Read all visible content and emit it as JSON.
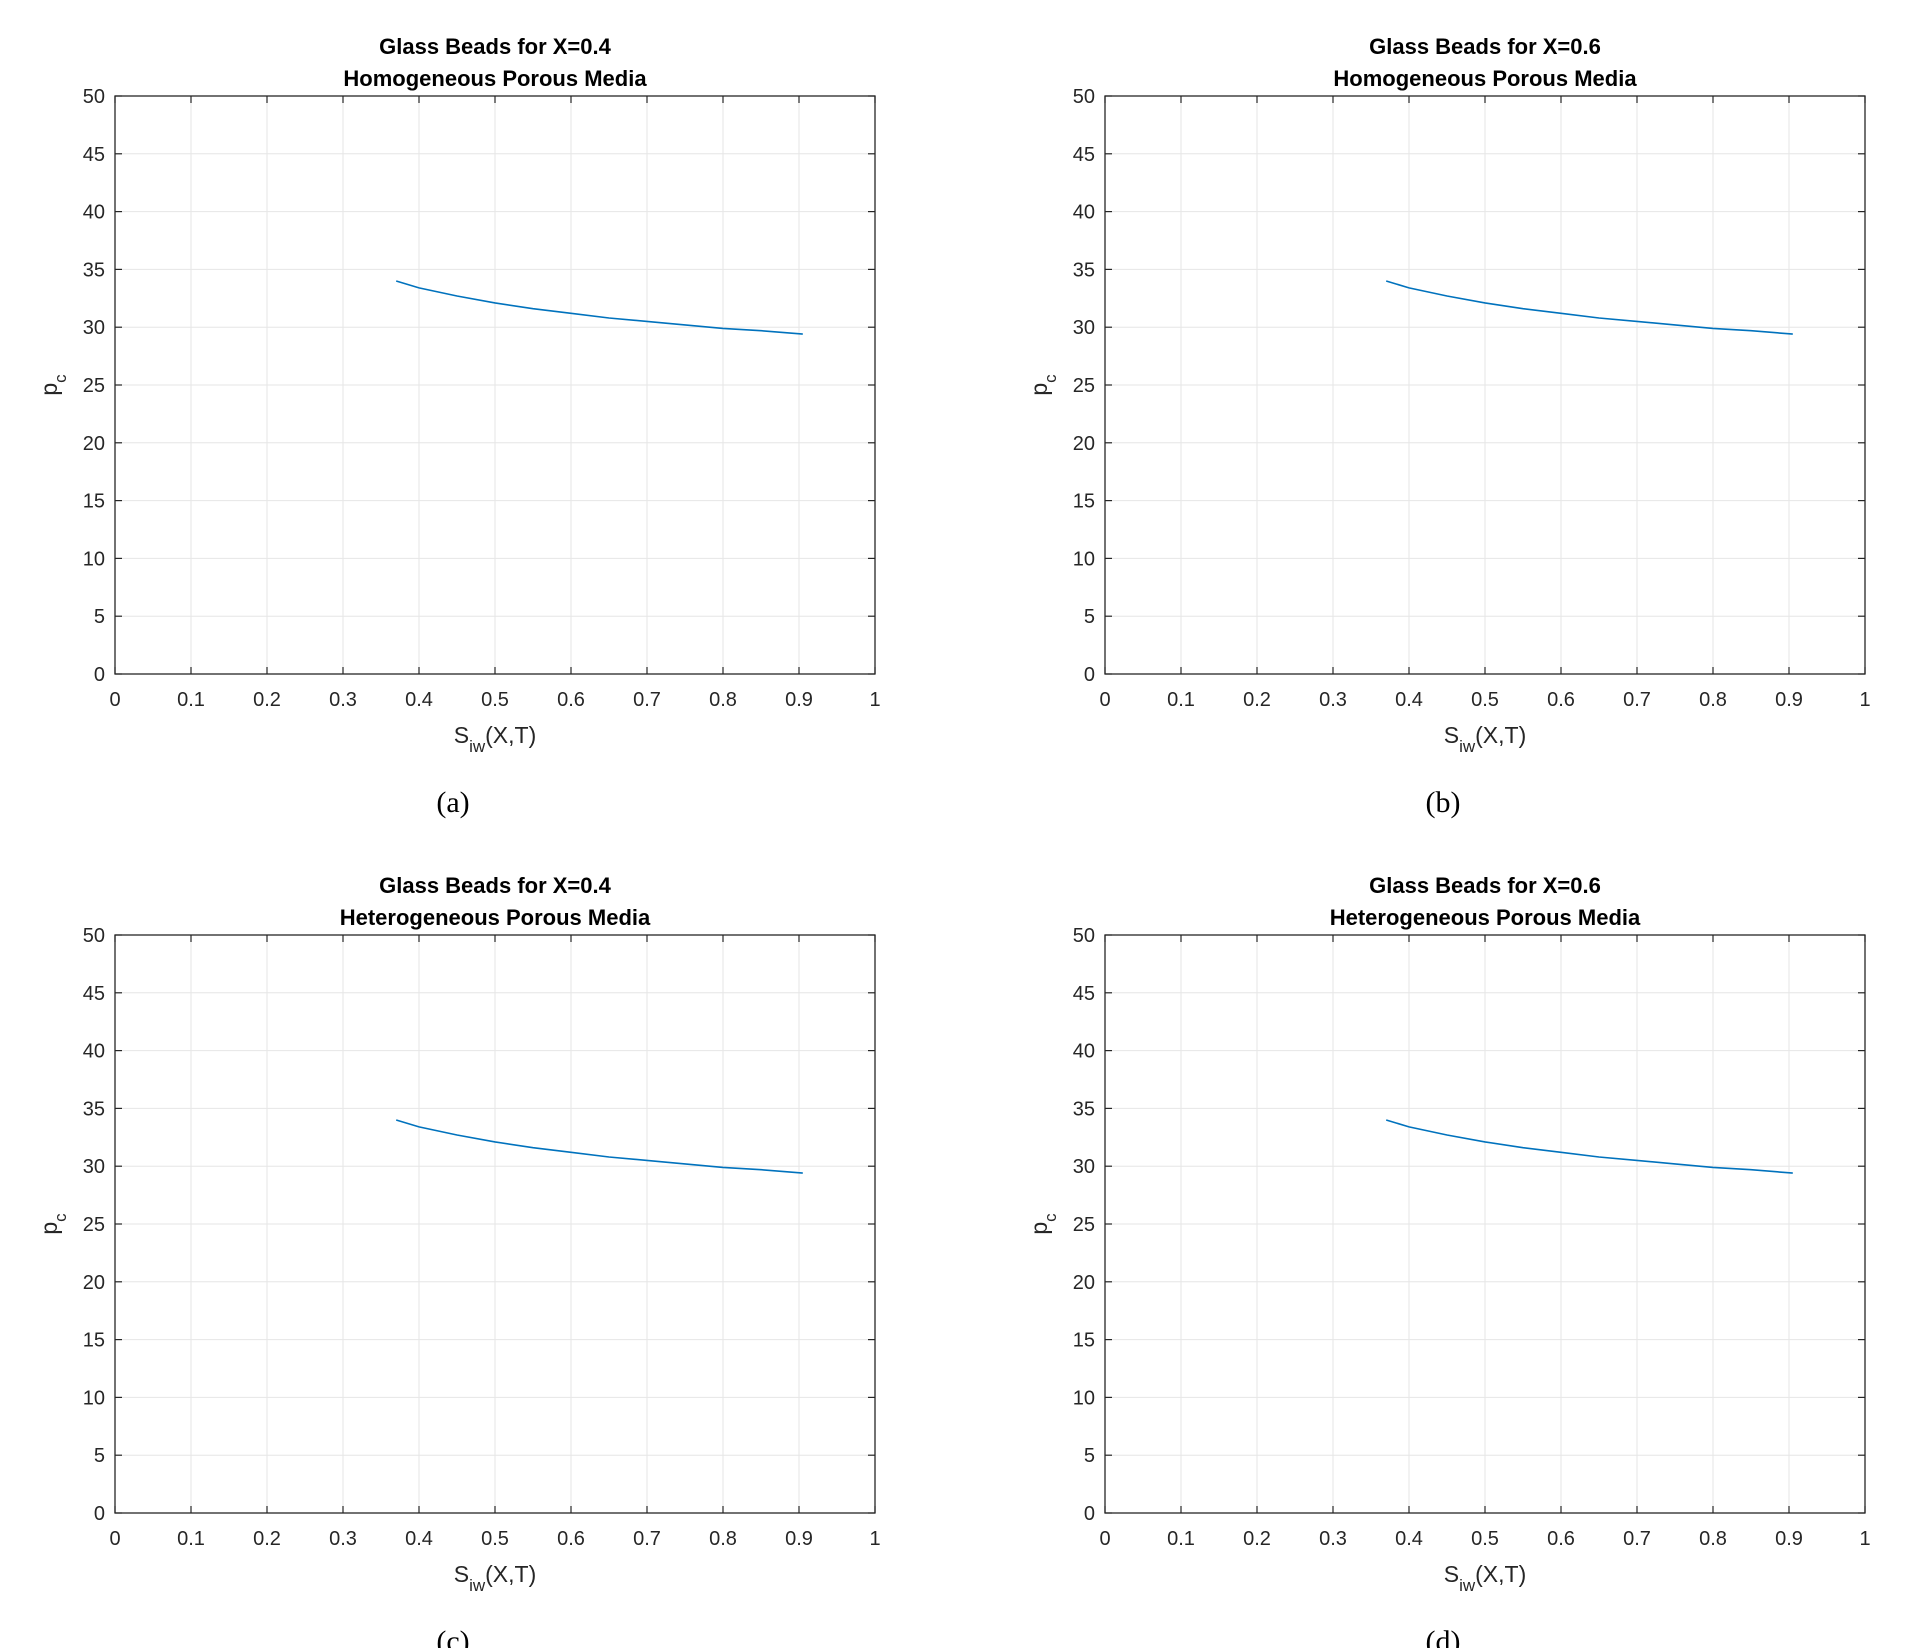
{
  "chart_data": [
    {
      "type": "line",
      "title": [
        "Glass Beads for X=0.4",
        "Homogeneous Porous Media"
      ],
      "caption": "(a)",
      "xlabel": {
        "main": "S",
        "sub": "iw",
        "suffix": "(X,T)"
      },
      "ylabel": {
        "main": "p",
        "sub": "c"
      },
      "xlim": [
        0,
        1
      ],
      "ylim": [
        0,
        50
      ],
      "xticks": [
        "0",
        "0.1",
        "0.2",
        "0.3",
        "0.4",
        "0.5",
        "0.6",
        "0.7",
        "0.8",
        "0.9",
        "1"
      ],
      "yticks": [
        "0",
        "5",
        "10",
        "15",
        "20",
        "25",
        "30",
        "35",
        "40",
        "45",
        "50"
      ],
      "grid": true,
      "series": [
        {
          "color": "#0072bd",
          "x": [
            0.37,
            0.4,
            0.45,
            0.5,
            0.55,
            0.6,
            0.65,
            0.7,
            0.75,
            0.8,
            0.85,
            0.905
          ],
          "y": [
            34.0,
            33.4,
            32.7,
            32.1,
            31.6,
            31.2,
            30.8,
            30.5,
            30.2,
            29.9,
            29.7,
            29.4
          ]
        }
      ]
    },
    {
      "type": "line",
      "title": [
        "Glass Beads for X=0.6",
        "Homogeneous Porous Media"
      ],
      "caption": "(b)",
      "xlabel": {
        "main": "S",
        "sub": "iw",
        "suffix": "(X,T)"
      },
      "ylabel": {
        "main": "p",
        "sub": "c"
      },
      "xlim": [
        0,
        1
      ],
      "ylim": [
        0,
        50
      ],
      "xticks": [
        "0",
        "0.1",
        "0.2",
        "0.3",
        "0.4",
        "0.5",
        "0.6",
        "0.7",
        "0.8",
        "0.9",
        "1"
      ],
      "yticks": [
        "0",
        "5",
        "10",
        "15",
        "20",
        "25",
        "30",
        "35",
        "40",
        "45",
        "50"
      ],
      "grid": true,
      "series": [
        {
          "color": "#0072bd",
          "x": [
            0.37,
            0.4,
            0.45,
            0.5,
            0.55,
            0.6,
            0.65,
            0.7,
            0.75,
            0.8,
            0.85,
            0.905
          ],
          "y": [
            34.0,
            33.4,
            32.7,
            32.1,
            31.6,
            31.2,
            30.8,
            30.5,
            30.2,
            29.9,
            29.7,
            29.4
          ]
        }
      ]
    },
    {
      "type": "line",
      "title": [
        "Glass Beads for X=0.4",
        "Heterogeneous Porous Media"
      ],
      "caption": "(c)",
      "xlabel": {
        "main": "S",
        "sub": "iw",
        "suffix": "(X,T)"
      },
      "ylabel": {
        "main": "p",
        "sub": "c"
      },
      "xlim": [
        0,
        1
      ],
      "ylim": [
        0,
        50
      ],
      "xticks": [
        "0",
        "0.1",
        "0.2",
        "0.3",
        "0.4",
        "0.5",
        "0.6",
        "0.7",
        "0.8",
        "0.9",
        "1"
      ],
      "yticks": [
        "0",
        "5",
        "10",
        "15",
        "20",
        "25",
        "30",
        "35",
        "40",
        "45",
        "50"
      ],
      "grid": true,
      "series": [
        {
          "color": "#0072bd",
          "x": [
            0.37,
            0.4,
            0.45,
            0.5,
            0.55,
            0.6,
            0.65,
            0.7,
            0.75,
            0.8,
            0.85,
            0.905
          ],
          "y": [
            34.0,
            33.4,
            32.7,
            32.1,
            31.6,
            31.2,
            30.8,
            30.5,
            30.2,
            29.9,
            29.7,
            29.4
          ]
        }
      ]
    },
    {
      "type": "line",
      "title": [
        "Glass Beads for X=0.6",
        "Heterogeneous Porous Media"
      ],
      "caption": "(d)",
      "xlabel": {
        "main": "S",
        "sub": "iw",
        "suffix": "(X,T)"
      },
      "ylabel": {
        "main": "p",
        "sub": "c"
      },
      "xlim": [
        0,
        1
      ],
      "ylim": [
        0,
        50
      ],
      "xticks": [
        "0",
        "0.1",
        "0.2",
        "0.3",
        "0.4",
        "0.5",
        "0.6",
        "0.7",
        "0.8",
        "0.9",
        "1"
      ],
      "yticks": [
        "0",
        "5",
        "10",
        "15",
        "20",
        "25",
        "30",
        "35",
        "40",
        "45",
        "50"
      ],
      "grid": true,
      "series": [
        {
          "color": "#0072bd",
          "x": [
            0.37,
            0.4,
            0.45,
            0.5,
            0.55,
            0.6,
            0.65,
            0.7,
            0.75,
            0.8,
            0.85,
            0.905
          ],
          "y": [
            34.0,
            33.4,
            32.7,
            32.1,
            31.6,
            31.2,
            30.8,
            30.5,
            30.2,
            29.9,
            29.7,
            29.4
          ]
        }
      ]
    }
  ]
}
